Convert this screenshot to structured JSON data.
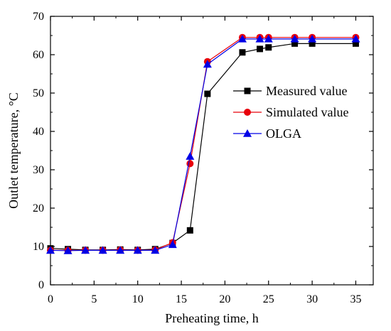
{
  "chart_data": {
    "type": "line",
    "title": "",
    "xlabel": "Preheating time, h",
    "ylabel": "Outlet temperature, °C",
    "xlim": [
      0,
      37
    ],
    "ylim": [
      0,
      70
    ],
    "x_ticks": [
      0,
      5,
      10,
      15,
      20,
      25,
      30,
      35
    ],
    "y_ticks": [
      0,
      10,
      20,
      30,
      40,
      50,
      60,
      70
    ],
    "grid": false,
    "legend_position": "center-right",
    "series": [
      {
        "name": "Measured value",
        "color": "#000000",
        "marker": "square",
        "x": [
          0,
          2,
          4,
          6,
          8,
          10,
          12,
          14,
          16,
          18,
          22,
          24,
          25,
          28,
          30,
          35
        ],
        "y": [
          9.5,
          9.3,
          9.1,
          9.1,
          9.2,
          9.1,
          9.3,
          10.9,
          14.2,
          49.8,
          60.6,
          61.5,
          61.9,
          62.9,
          62.9,
          62.9
        ]
      },
      {
        "name": "Simulated value",
        "color": "#e8000b",
        "marker": "circle",
        "x": [
          0,
          2,
          4,
          6,
          8,
          10,
          12,
          14,
          16,
          18,
          22,
          24,
          25,
          28,
          30,
          35
        ],
        "y": [
          9.0,
          9.0,
          9.0,
          9.0,
          9.1,
          9.0,
          9.1,
          11.0,
          31.6,
          58.2,
          64.5,
          64.5,
          64.5,
          64.5,
          64.5,
          64.5
        ]
      },
      {
        "name": "OLGA",
        "color": "#0000e6",
        "marker": "triangle",
        "x": [
          0,
          2,
          4,
          6,
          8,
          10,
          12,
          14,
          16,
          18,
          22,
          24,
          25,
          28,
          30,
          35
        ],
        "y": [
          9.0,
          8.9,
          9.0,
          9.0,
          9.0,
          9.0,
          9.0,
          10.5,
          33.5,
          57.5,
          64.1,
          64.1,
          64.1,
          64.1,
          64.1,
          64.1
        ]
      }
    ]
  }
}
